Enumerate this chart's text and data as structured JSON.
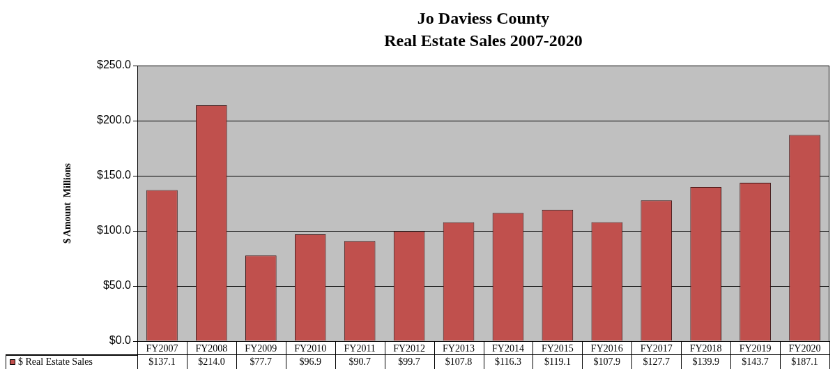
{
  "chart_data": {
    "type": "bar",
    "title": "Jo Daviess County",
    "subtitle": "Real Estate Sales 2007-2020",
    "ylabel": "$ Amount  Millions",
    "categories": [
      "FY2007",
      "FY2008",
      "FY2009",
      "FY2010",
      "FY2011",
      "FY2012",
      "FY2013",
      "FY2014",
      "FY2015",
      "FY2016",
      "FY2017",
      "FY2018",
      "FY2019",
      "FY2020"
    ],
    "series": [
      {
        "name": "$ Real Estate Sales",
        "color": "#c0504d",
        "values": [
          137.1,
          214.0,
          77.7,
          96.9,
          90.7,
          99.7,
          107.8,
          116.3,
          119.1,
          107.9,
          127.7,
          139.9,
          143.7,
          187.1
        ],
        "value_labels": [
          "$137.1",
          "$214.0",
          "$77.7",
          "$96.9",
          "$90.7",
          "$99.7",
          "$107.8",
          "$116.3",
          "$119.1",
          "$107.9",
          "$127.7",
          "$139.9",
          "$143.7",
          "$187.1"
        ]
      }
    ],
    "ylim": [
      0,
      250
    ],
    "yticks": [
      {
        "value": 0,
        "label": "$0.0"
      },
      {
        "value": 50,
        "label": "$50.0"
      },
      {
        "value": 100,
        "label": "$100.0"
      },
      {
        "value": 150,
        "label": "$150.0"
      },
      {
        "value": 200,
        "label": "$200.0"
      },
      {
        "value": 250,
        "label": "$250.0"
      }
    ],
    "grid": "y",
    "legend": "bottom left"
  }
}
